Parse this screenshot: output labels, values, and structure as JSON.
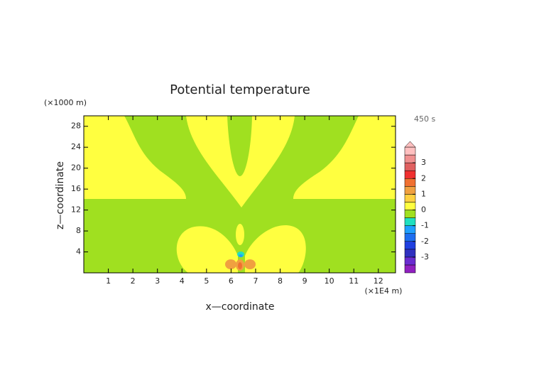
{
  "chart_data": {
    "type": "contour",
    "title": "Potential temperature",
    "x_label": "x—coordinate",
    "y_label": "z—coordinate",
    "x_unit": "(×1E4 m)",
    "y_unit": "(×1000 m)",
    "time_label": "450 s",
    "xlim": [
      0,
      12.7
    ],
    "ylim": [
      0,
      30
    ],
    "xticks": [
      1,
      2,
      3,
      4,
      5,
      6,
      7,
      8,
      9,
      10,
      11,
      12
    ],
    "yticks": [
      4,
      8,
      12,
      16,
      20,
      24,
      28
    ],
    "levels": [
      -4,
      -3.5,
      -3,
      -2.5,
      -2,
      -1.5,
      -1,
      -0.5,
      0,
      0.5,
      1,
      1.5,
      2,
      2.5,
      3,
      3.5,
      4
    ],
    "colors": [
      "#9020c0",
      "#6a2cd0",
      "#3030c0",
      "#2040e0",
      "#1e6ef0",
      "#20a0ff",
      "#20e0c0",
      "#a0e020",
      "#ffff40",
      "#ffd040",
      "#f0a040",
      "#f07030",
      "#f03030",
      "#e06060",
      "#f09090",
      "#ffc0c0"
    ],
    "colorbar_ticks": [
      -3,
      -2,
      -1,
      0,
      1,
      2,
      3
    ]
  }
}
